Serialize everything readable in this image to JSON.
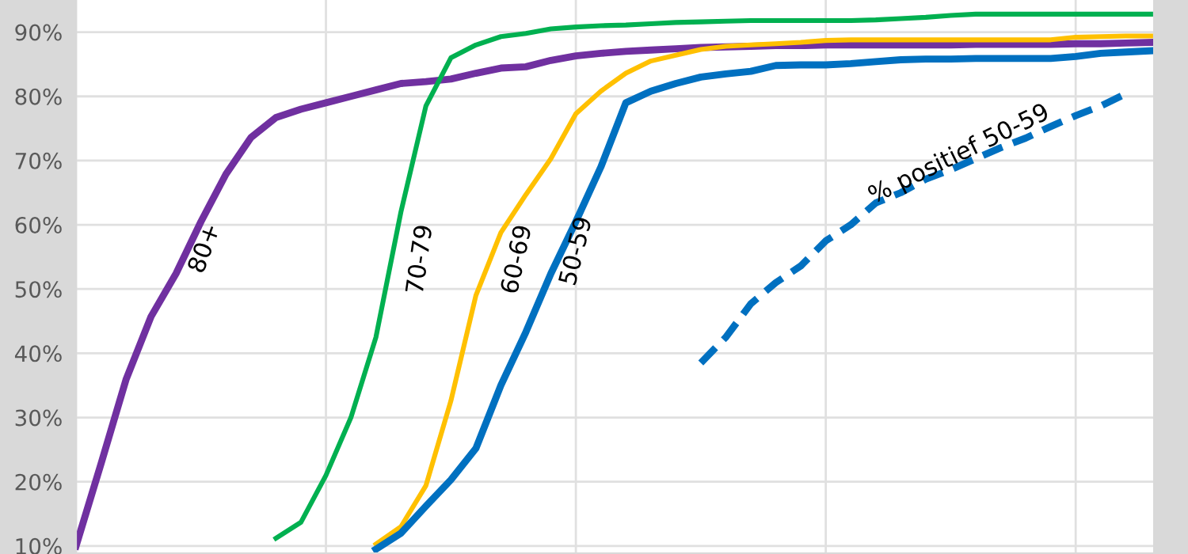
{
  "chart_data": {
    "type": "line",
    "categories": [
      null,
      null,
      null,
      null,
      null,
      null,
      null,
      null,
      null,
      null,
      null,
      null,
      null,
      null,
      null,
      null,
      null,
      null,
      null,
      null,
      null,
      null,
      null,
      null,
      null,
      null,
      null,
      null,
      null,
      null,
      null,
      null,
      null,
      null,
      null,
      null,
      null,
      null,
      null,
      null,
      null,
      null,
      null,
      null
    ],
    "series": [
      {
        "name": "80+",
        "color": "#7030a0",
        "values": [
          10,
          22.8,
          35.9,
          45.7,
          52.4,
          60.5,
          67.9,
          73.6,
          76.7,
          78,
          79,
          80,
          81,
          82,
          82.3,
          82.7,
          83.6,
          84.4,
          84.6,
          85.6,
          86.3,
          86.7,
          87,
          87.2,
          87.4,
          87.6,
          87.7,
          87.8,
          87.9,
          87.9,
          88,
          88,
          88,
          88,
          88,
          88,
          88.1,
          88.1,
          88.1,
          88.1,
          88.2,
          88.2,
          88.3,
          88.4
        ]
      },
      {
        "name": "70-79",
        "color": "#00b050",
        "values": [
          null,
          null,
          null,
          null,
          null,
          null,
          null,
          null,
          11.2,
          13.7,
          21,
          30,
          42.5,
          62,
          78.5,
          86,
          88,
          89.3,
          89.8,
          90.5,
          90.8,
          91,
          91.1,
          91.3,
          91.5,
          91.6,
          91.7,
          91.8,
          91.8,
          91.8,
          91.8,
          91.8,
          91.9,
          92.1,
          92.3,
          92.6,
          92.8,
          92.8,
          92.8,
          92.8,
          92.8,
          92.8,
          92.8,
          92.8
        ]
      },
      {
        "name": "60-69",
        "color": "#ffc000",
        "values": [
          null,
          null,
          null,
          null,
          null,
          null,
          null,
          null,
          null,
          null,
          null,
          null,
          10.3,
          13,
          19.4,
          32.6,
          49,
          58.8,
          64.7,
          70.3,
          77.3,
          80.8,
          83.6,
          85.5,
          86.4,
          87.3,
          87.8,
          88,
          88.2,
          88.4,
          88.7,
          88.8,
          88.8,
          88.8,
          88.8,
          88.8,
          88.8,
          88.8,
          88.8,
          88.8,
          89.2,
          89.3,
          89.4,
          89.4
        ]
      },
      {
        "name": "50-59",
        "color": "#0070c0",
        "values": [
          null,
          null,
          null,
          null,
          null,
          null,
          null,
          null,
          null,
          null,
          null,
          null,
          9.5,
          12,
          16.2,
          20.3,
          25.2,
          35,
          43.3,
          52.4,
          60.5,
          69,
          79,
          80.8,
          82,
          83,
          83.5,
          83.9,
          84.8,
          84.9,
          84.9,
          85.1,
          85.4,
          85.7,
          85.8,
          85.8,
          85.9,
          85.9,
          85.9,
          85.9,
          86.2,
          86.7,
          86.9,
          87.1
        ]
      },
      {
        "name": "% positief 50-59",
        "color": "#0070c0",
        "line_style": "dashed",
        "values": [
          null,
          null,
          null,
          null,
          null,
          null,
          null,
          null,
          null,
          null,
          null,
          null,
          null,
          null,
          null,
          null,
          null,
          null,
          null,
          null,
          null,
          null,
          null,
          null,
          null,
          38.5,
          42.5,
          47.7,
          51,
          53.6,
          57.5,
          60,
          63.4,
          65,
          67.1,
          68.6,
          70.3,
          72,
          73.5,
          75.3,
          77,
          78.5,
          80.4,
          null
        ]
      }
    ],
    "ylim": [
      9,
      95
    ],
    "yticks": [
      {
        "value": 10,
        "label": "10%"
      },
      {
        "value": 20,
        "label": "20%"
      },
      {
        "value": 30,
        "label": "30%"
      },
      {
        "value": 40,
        "label": "40%"
      },
      {
        "value": 50,
        "label": "50%"
      },
      {
        "value": 60,
        "label": "60%"
      },
      {
        "value": 70,
        "label": "70%"
      },
      {
        "value": 80,
        "label": "80%"
      },
      {
        "value": 90,
        "label": "90%"
      }
    ],
    "grid": true,
    "legend": false,
    "tick_labels": "y",
    "line_style": "solid",
    "marker": "none"
  }
}
